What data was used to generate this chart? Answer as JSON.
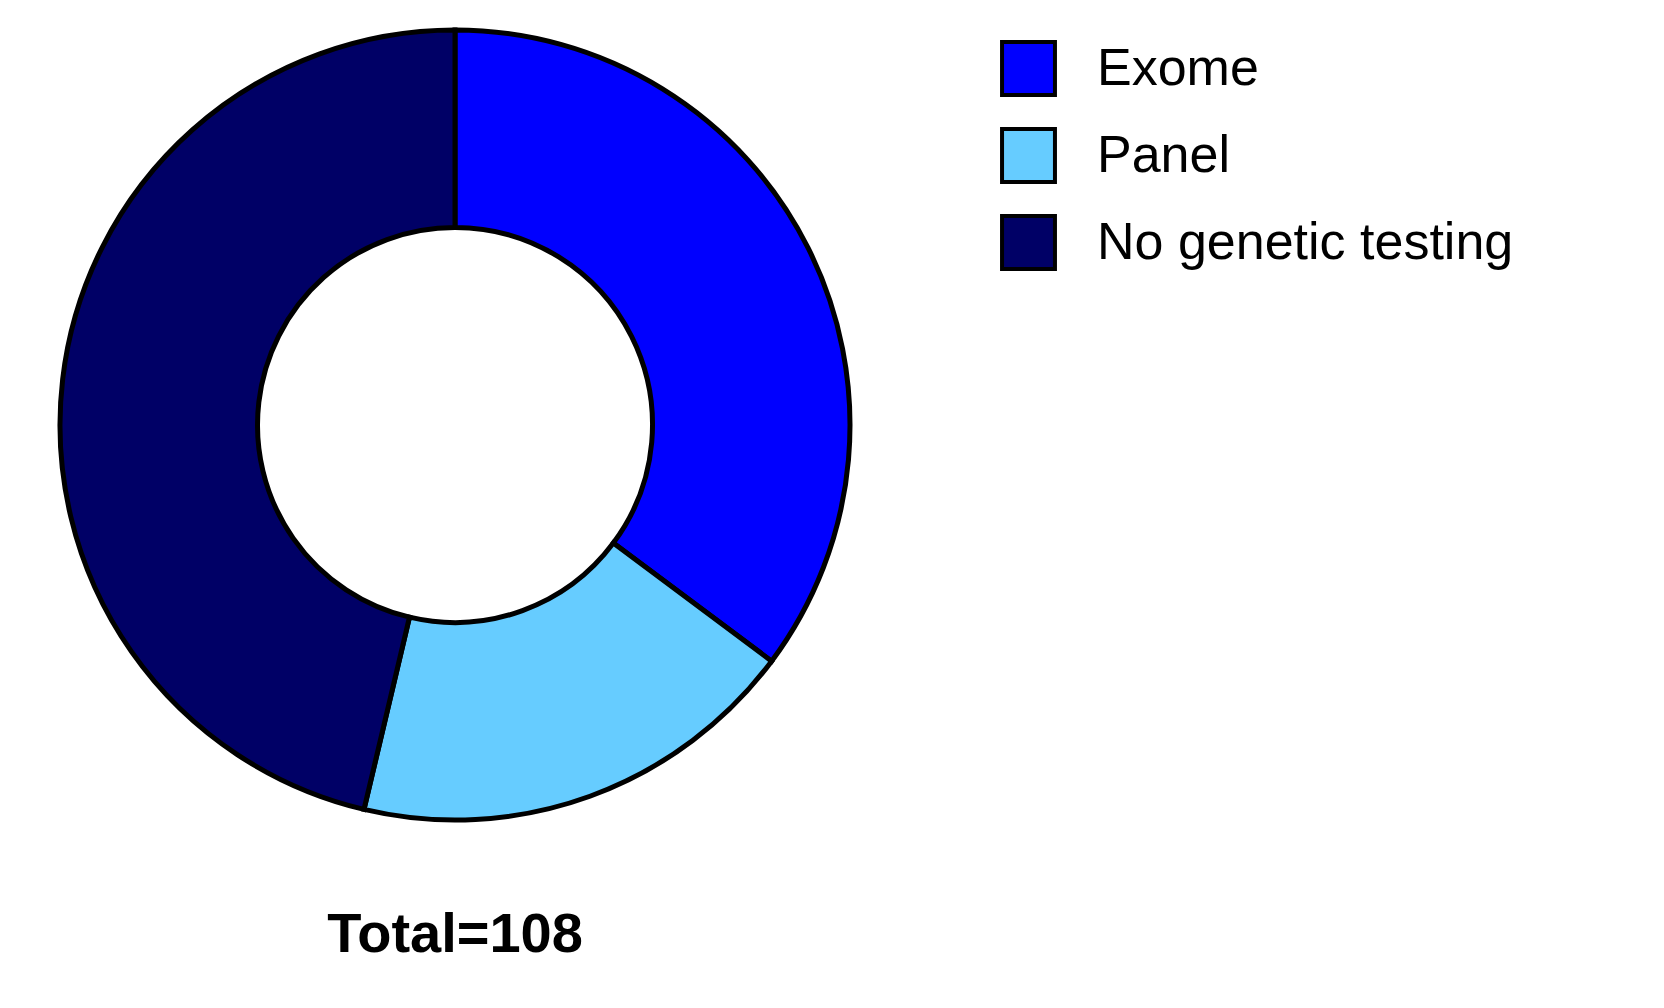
{
  "chart_data": {
    "type": "donut",
    "categories": [
      "Exome",
      "Panel",
      "No genetic testing"
    ],
    "values": [
      35.2,
      18.5,
      46.3
    ],
    "colors": [
      "#0000ff",
      "#66ccff",
      "#000066"
    ],
    "legend": "top right",
    "annotations": [
      "Total=108"
    ]
  }
}
